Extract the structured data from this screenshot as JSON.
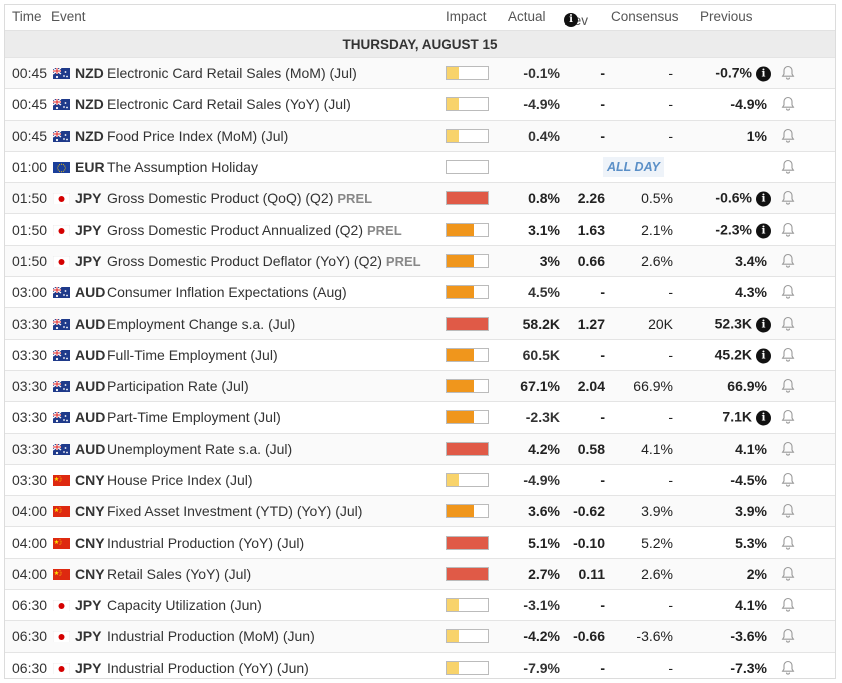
{
  "columns": {
    "time": "Time",
    "event": "Event",
    "impact": "Impact",
    "actual": "Actual",
    "dev": "Dev",
    "consensus": "Consensus",
    "previous": "Previous"
  },
  "day_label": "THURSDAY, AUGUST 15",
  "all_day_label": "ALL DAY",
  "prel_label": "PREL",
  "colors": {
    "low": "#f8d36b",
    "medium": "#f0961c",
    "high": "#e05a47",
    "positive": "#2e8b57",
    "negative": "#d9534f"
  },
  "rows": [
    {
      "time": "00:45",
      "flag": "au-nz",
      "currency": "NZD",
      "event": "Electronic Card Retail Sales (MoM) (Jul)",
      "impact": "low",
      "actual": "-0.1%",
      "actual_tone": "neutral",
      "dev": "-",
      "consensus": "-",
      "previous": "-0.7%",
      "previous_info": true
    },
    {
      "time": "00:45",
      "flag": "au-nz",
      "currency": "NZD",
      "event": "Electronic Card Retail Sales (YoY) (Jul)",
      "impact": "low",
      "actual": "-4.9%",
      "actual_tone": "neutral",
      "dev": "-",
      "consensus": "-",
      "previous": "-4.9%",
      "previous_info": false
    },
    {
      "time": "00:45",
      "flag": "au-nz",
      "currency": "NZD",
      "event": "Food Price Index (MoM) (Jul)",
      "impact": "low",
      "actual": "0.4%",
      "actual_tone": "neutral",
      "dev": "-",
      "consensus": "-",
      "previous": "1%",
      "previous_info": false
    },
    {
      "time": "01:00",
      "flag": "eu",
      "currency": "EUR",
      "event": "The Assumption Holiday",
      "impact": "none",
      "all_day": true,
      "actual": "",
      "actual_tone": "neutral",
      "dev": "",
      "consensus": "",
      "previous": "",
      "previous_info": false
    },
    {
      "time": "01:50",
      "flag": "jp",
      "currency": "JPY",
      "event": "Gross Domestic Product (QoQ) (Q2)",
      "prel": true,
      "impact": "high",
      "actual": "0.8%",
      "actual_tone": "positive",
      "dev": "2.26",
      "consensus": "0.5%",
      "previous": "-0.6%",
      "previous_info": true
    },
    {
      "time": "01:50",
      "flag": "jp",
      "currency": "JPY",
      "event": "Gross Domestic Product Annualized (Q2)",
      "prel": true,
      "impact": "medium",
      "actual": "3.1%",
      "actual_tone": "positive",
      "dev": "1.63",
      "consensus": "2.1%",
      "previous": "-2.3%",
      "previous_info": true
    },
    {
      "time": "01:50",
      "flag": "jp",
      "currency": "JPY",
      "event": "Gross Domestic Product Deflator (YoY) (Q2)",
      "prel": true,
      "impact": "medium",
      "actual": "3%",
      "actual_tone": "positive",
      "dev": "0.66",
      "consensus": "2.6%",
      "previous": "3.4%",
      "previous_info": false
    },
    {
      "time": "03:00",
      "flag": "au-nz",
      "currency": "AUD",
      "event": "Consumer Inflation Expectations (Aug)",
      "impact": "medium",
      "actual": "4.5%",
      "actual_tone": "neutral",
      "dev": "-",
      "consensus": "-",
      "previous": "4.3%",
      "previous_info": false
    },
    {
      "time": "03:30",
      "flag": "au-nz",
      "currency": "AUD",
      "event": "Employment Change s.a. (Jul)",
      "impact": "high",
      "actual": "58.2K",
      "actual_tone": "positive",
      "dev": "1.27",
      "consensus": "20K",
      "previous": "52.3K",
      "previous_info": true
    },
    {
      "time": "03:30",
      "flag": "au-nz",
      "currency": "AUD",
      "event": "Full-Time Employment (Jul)",
      "impact": "medium",
      "actual": "60.5K",
      "actual_tone": "neutral",
      "dev": "-",
      "consensus": "-",
      "previous": "45.2K",
      "previous_info": true
    },
    {
      "time": "03:30",
      "flag": "au-nz",
      "currency": "AUD",
      "event": "Participation Rate (Jul)",
      "impact": "medium",
      "actual": "67.1%",
      "actual_tone": "positive",
      "dev": "2.04",
      "consensus": "66.9%",
      "previous": "66.9%",
      "previous_info": false
    },
    {
      "time": "03:30",
      "flag": "au-nz",
      "currency": "AUD",
      "event": "Part-Time Employment (Jul)",
      "impact": "medium",
      "actual": "-2.3K",
      "actual_tone": "neutral",
      "dev": "-",
      "consensus": "-",
      "previous": "7.1K",
      "previous_info": true
    },
    {
      "time": "03:30",
      "flag": "au-nz",
      "currency": "AUD",
      "event": "Unemployment Rate s.a. (Jul)",
      "impact": "high",
      "actual": "4.2%",
      "actual_tone": "negative",
      "dev": "0.58",
      "consensus": "4.1%",
      "previous": "4.1%",
      "previous_info": false
    },
    {
      "time": "03:30",
      "flag": "cn",
      "currency": "CNY",
      "event": "House Price Index (Jul)",
      "impact": "low",
      "actual": "-4.9%",
      "actual_tone": "neutral",
      "dev": "-",
      "consensus": "-",
      "previous": "-4.5%",
      "previous_info": false
    },
    {
      "time": "04:00",
      "flag": "cn",
      "currency": "CNY",
      "event": "Fixed Asset Investment (YTD) (YoY) (Jul)",
      "impact": "medium",
      "actual": "3.6%",
      "actual_tone": "negative",
      "dev": "-0.62",
      "consensus": "3.9%",
      "previous": "3.9%",
      "previous_info": false
    },
    {
      "time": "04:00",
      "flag": "cn",
      "currency": "CNY",
      "event": "Industrial Production (YoY) (Jul)",
      "impact": "high",
      "actual": "5.1%",
      "actual_tone": "negative",
      "dev": "-0.10",
      "consensus": "5.2%",
      "previous": "5.3%",
      "previous_info": false
    },
    {
      "time": "04:00",
      "flag": "cn",
      "currency": "CNY",
      "event": "Retail Sales (YoY) (Jul)",
      "impact": "high",
      "actual": "2.7%",
      "actual_tone": "positive",
      "dev": "0.11",
      "consensus": "2.6%",
      "previous": "2%",
      "previous_info": false
    },
    {
      "time": "06:30",
      "flag": "jp",
      "currency": "JPY",
      "event": "Capacity Utilization (Jun)",
      "impact": "low",
      "actual": "-3.1%",
      "actual_tone": "neutral",
      "dev": "-",
      "consensus": "-",
      "previous": "4.1%",
      "previous_info": false
    },
    {
      "time": "06:30",
      "flag": "jp",
      "currency": "JPY",
      "event": "Industrial Production (MoM) (Jun)",
      "impact": "low",
      "actual": "-4.2%",
      "actual_tone": "negative",
      "dev": "-0.66",
      "consensus": "-3.6%",
      "previous": "-3.6%",
      "previous_info": false
    },
    {
      "time": "06:30",
      "flag": "jp",
      "currency": "JPY",
      "event": "Industrial Production (YoY) (Jun)",
      "impact": "low",
      "actual": "-7.9%",
      "actual_tone": "neutral",
      "dev": "-",
      "consensus": "-",
      "previous": "-7.3%",
      "previous_info": false
    }
  ]
}
